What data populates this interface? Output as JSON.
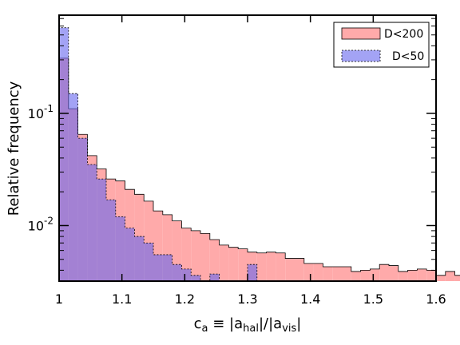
{
  "chart_data": {
    "type": "bar",
    "subtype": "histogram",
    "xlabel": "c_a ≡ |a_hal|/|a_vis|",
    "xlabel_parts": {
      "base": "c",
      "sub": "a",
      "mid1": " ≡ |a",
      "sub2": "hal",
      "mid2": "|/|a",
      "sub3": "vis",
      "end": "|"
    },
    "ylabel": "Relative frequency",
    "yscale": "log",
    "xlim": [
      1.0,
      1.6
    ],
    "ylim": [
      0.0032,
      0.75
    ],
    "x_ticks": [
      {
        "value": 1.0,
        "label": "1"
      },
      {
        "value": 1.1,
        "label": "1.1"
      },
      {
        "value": 1.2,
        "label": "1.2"
      },
      {
        "value": 1.3,
        "label": "1.3"
      },
      {
        "value": 1.4,
        "label": "1.4"
      },
      {
        "value": 1.5,
        "label": "1.5"
      },
      {
        "value": 1.6,
        "label": "1.6"
      }
    ],
    "y_ticks": [
      {
        "value": 0.1,
        "base": "10",
        "exp": "-1"
      },
      {
        "value": 0.01,
        "base": "10",
        "exp": "-2"
      }
    ],
    "bin_width": 0.015,
    "bin_start": 1.0,
    "legend_position": "top-right",
    "series": [
      {
        "name": "D<200",
        "fill": "#ffaaaa",
        "stroke": "#000000",
        "line_style": "solid",
        "values": [
          0.31,
          0.11,
          0.065,
          0.042,
          0.032,
          0.026,
          0.025,
          0.021,
          0.019,
          0.0165,
          0.0135,
          0.0125,
          0.011,
          0.0095,
          0.009,
          0.0085,
          0.0075,
          0.0067,
          0.0064,
          0.0062,
          0.0058,
          0.0057,
          0.0058,
          0.0057,
          0.0051,
          0.0051,
          0.0046,
          0.0046,
          0.0043,
          0.0043,
          0.0043,
          0.0039,
          0.004,
          0.0041,
          0.0045,
          0.0044,
          0.0039,
          0.004,
          0.0041,
          0.004,
          0.0036,
          0.0039,
          0.0036,
          0.0035,
          0.0035,
          0.0036,
          0.0036,
          0.0039
        ]
      },
      {
        "name": "D<50",
        "fill": "#6666ee",
        "stroke": "#000000",
        "line_style": "dotted",
        "values": [
          0.58,
          0.15,
          0.06,
          0.035,
          0.026,
          0.017,
          0.012,
          0.0095,
          0.008,
          0.007,
          0.0055,
          0.0055,
          0.0045,
          0.0041,
          0.0036,
          0.0032,
          0.0037,
          0.0032,
          0.0032,
          0.0032,
          0.0045,
          0.0032
        ]
      }
    ]
  }
}
